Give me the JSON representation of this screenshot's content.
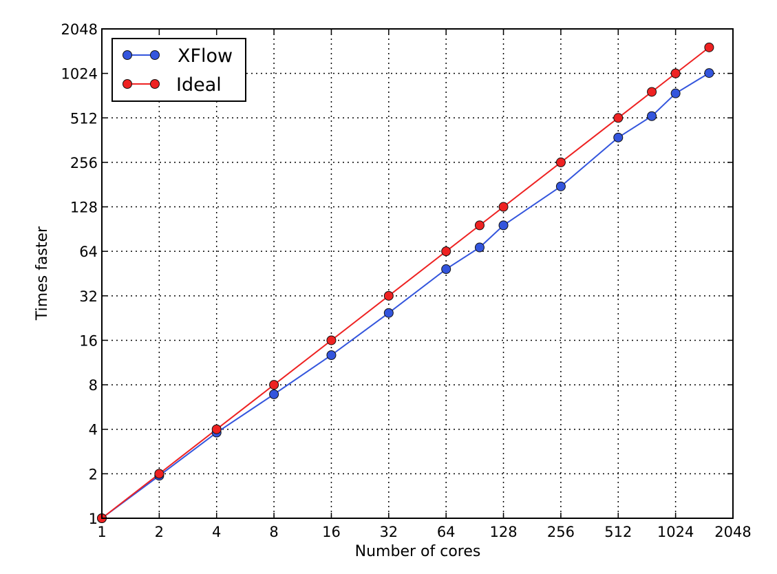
{
  "chart_data": {
    "type": "line",
    "title": "",
    "xlabel": "Number of cores",
    "ylabel": "Times faster",
    "xscale": "log2",
    "yscale": "log2",
    "xlim": [
      1,
      2048
    ],
    "ylim": [
      1,
      2048
    ],
    "xticks": [
      "1",
      "2",
      "4",
      "8",
      "16",
      "32",
      "64",
      "128",
      "256",
      "512",
      "1024",
      "2048"
    ],
    "yticks": [
      "1",
      "2",
      "4",
      "8",
      "16",
      "32",
      "64",
      "128",
      "256",
      "512",
      "1024",
      "2048"
    ],
    "grid": true,
    "legend_position": "top-left",
    "series": [
      {
        "name": "XFlow",
        "color": "#3355dd",
        "x": [
          1,
          2,
          4,
          8,
          16,
          32,
          64,
          96,
          128,
          256,
          512,
          768,
          1024,
          1536
        ],
        "y": [
          1,
          1.94,
          3.8,
          6.9,
          12.7,
          24.5,
          48.5,
          68,
          96,
          176,
          377,
          526,
          750,
          1030
        ]
      },
      {
        "name": "Ideal",
        "color": "#ee2222",
        "x": [
          1,
          2,
          4,
          8,
          16,
          32,
          64,
          96,
          128,
          256,
          512,
          768,
          1024,
          1536
        ],
        "y": [
          1,
          2,
          4,
          8,
          16,
          32,
          64,
          96,
          128,
          256,
          512,
          768,
          1024,
          1536
        ]
      }
    ]
  }
}
